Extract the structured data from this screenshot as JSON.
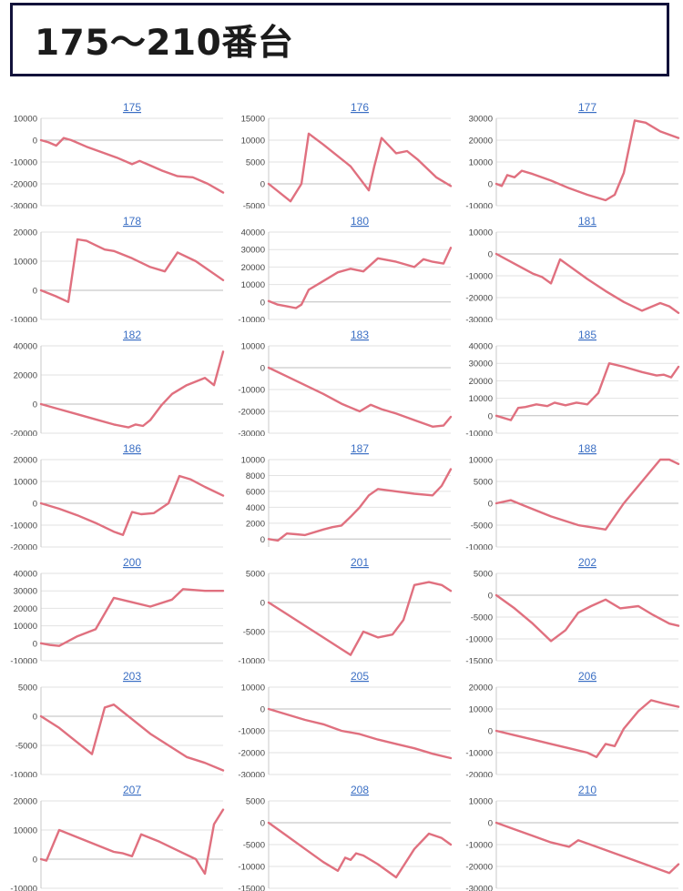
{
  "header": {
    "title": "175〜210番台"
  },
  "chart_data": [
    {
      "type": "line",
      "title": "175",
      "ylim": [
        -30000,
        10000
      ],
      "yticks": [
        10000,
        0,
        -10000,
        -20000,
        -30000
      ],
      "x": [
        0,
        5,
        10,
        15,
        20,
        30,
        40,
        50,
        60,
        65,
        70,
        75,
        80,
        90,
        100,
        110,
        120
      ],
      "values": [
        0,
        -1000,
        -2500,
        1000,
        0,
        -3000,
        -5500,
        -8000,
        -11000,
        -9500,
        -11000,
        -12500,
        -14000,
        -16500,
        -17000,
        -20000,
        -24000
      ]
    },
    {
      "type": "line",
      "title": "176",
      "ylim": [
        -5000,
        15000
      ],
      "yticks": [
        15000,
        10000,
        5000,
        0,
        -5000
      ],
      "x": [
        0,
        12,
        18,
        22,
        30,
        45,
        55,
        58,
        62,
        70,
        76,
        82,
        92,
        100
      ],
      "values": [
        0,
        -4000,
        0,
        11500,
        9000,
        4000,
        -1500,
        4000,
        10500,
        7000,
        7500,
        5500,
        1500,
        -500
      ]
    },
    {
      "type": "line",
      "title": "177",
      "ylim": [
        -10000,
        30000
      ],
      "yticks": [
        30000,
        20000,
        10000,
        0,
        -10000
      ],
      "x": [
        0,
        3,
        6,
        10,
        14,
        20,
        30,
        40,
        50,
        60,
        65,
        70,
        76,
        82,
        90,
        100
      ],
      "values": [
        0,
        -1000,
        4000,
        3000,
        6000,
        4500,
        1500,
        -2000,
        -5000,
        -7500,
        -5000,
        5000,
        29000,
        28000,
        24000,
        21000
      ]
    },
    {
      "type": "line",
      "title": "178",
      "ylim": [
        -10000,
        20000
      ],
      "yticks": [
        20000,
        10000,
        0,
        -10000
      ],
      "x": [
        0,
        8,
        15,
        20,
        25,
        30,
        35,
        40,
        50,
        60,
        68,
        75,
        85,
        100
      ],
      "values": [
        0,
        -2000,
        -4000,
        17500,
        17000,
        15500,
        14000,
        13500,
        11000,
        8000,
        6500,
        13000,
        10000,
        3500
      ]
    },
    {
      "type": "line",
      "title": "180",
      "ylim": [
        -10000,
        40000
      ],
      "yticks": [
        40000,
        30000,
        20000,
        10000,
        0,
        -10000
      ],
      "x": [
        0,
        5,
        10,
        15,
        18,
        22,
        30,
        38,
        45,
        52,
        60,
        70,
        80,
        85,
        90,
        96,
        100
      ],
      "values": [
        500,
        -1500,
        -2500,
        -3500,
        -1500,
        7000,
        12000,
        17000,
        19000,
        17500,
        25000,
        23000,
        20000,
        24500,
        23000,
        22000,
        31000
      ]
    },
    {
      "type": "line",
      "title": "181",
      "ylim": [
        -30000,
        10000
      ],
      "yticks": [
        10000,
        0,
        -10000,
        -20000,
        -30000
      ],
      "x": [
        0,
        10,
        20,
        25,
        30,
        35,
        40,
        50,
        60,
        70,
        80,
        90,
        95,
        100
      ],
      "values": [
        0,
        -4500,
        -9000,
        -10500,
        -13500,
        -2500,
        -5500,
        -11500,
        -17000,
        -22000,
        -26000,
        -22500,
        -24000,
        -27000
      ]
    },
    {
      "type": "line",
      "title": "182",
      "ylim": [
        -20000,
        40000
      ],
      "yticks": [
        40000,
        20000,
        0,
        -20000
      ],
      "x": [
        0,
        10,
        20,
        30,
        40,
        48,
        52,
        56,
        60,
        66,
        72,
        80,
        90,
        95,
        100
      ],
      "values": [
        0,
        -3500,
        -7000,
        -10500,
        -14000,
        -16000,
        -14000,
        -15000,
        -11000,
        -1000,
        7000,
        13000,
        18000,
        13000,
        36000
      ]
    },
    {
      "type": "line",
      "title": "183",
      "ylim": [
        -30000,
        10000
      ],
      "yticks": [
        10000,
        0,
        -10000,
        -20000,
        -30000
      ],
      "x": [
        0,
        10,
        20,
        30,
        40,
        50,
        56,
        62,
        70,
        80,
        90,
        96,
        100
      ],
      "values": [
        0,
        -4000,
        -8000,
        -12000,
        -16500,
        -20000,
        -17000,
        -19000,
        -21000,
        -24000,
        -27000,
        -26500,
        -22500
      ]
    },
    {
      "type": "line",
      "title": "185",
      "ylim": [
        -10000,
        40000
      ],
      "yticks": [
        40000,
        30000,
        20000,
        10000,
        0,
        -10000
      ],
      "x": [
        0,
        8,
        12,
        16,
        22,
        28,
        32,
        38,
        44,
        50,
        56,
        62,
        70,
        80,
        88,
        92,
        96,
        100
      ],
      "values": [
        0,
        -2500,
        4500,
        5000,
        6500,
        5500,
        7500,
        6000,
        7500,
        6500,
        13000,
        30000,
        28000,
        25000,
        23000,
        23500,
        22000,
        28000
      ]
    },
    {
      "type": "line",
      "title": "186",
      "ylim": [
        -20000,
        20000
      ],
      "yticks": [
        20000,
        10000,
        0,
        -10000,
        -20000
      ],
      "x": [
        0,
        10,
        20,
        30,
        40,
        45,
        50,
        55,
        62,
        70,
        76,
        82,
        90,
        100
      ],
      "values": [
        0,
        -2500,
        -5500,
        -9000,
        -13000,
        -14500,
        -4000,
        -5000,
        -4500,
        0,
        12500,
        11000,
        7500,
        3500
      ]
    },
    {
      "type": "line",
      "title": "187",
      "ylim": [
        -1000,
        10000
      ],
      "yticks": [
        10000,
        8000,
        6000,
        4000,
        2000,
        0
      ],
      "x": [
        0,
        5,
        10,
        15,
        20,
        30,
        35,
        40,
        45,
        50,
        55,
        60,
        70,
        80,
        90,
        95,
        100
      ],
      "values": [
        0,
        -200,
        700,
        600,
        500,
        1200,
        1500,
        1700,
        2800,
        4000,
        5500,
        6300,
        6000,
        5700,
        5500,
        6700,
        8800
      ]
    },
    {
      "type": "line",
      "title": "188",
      "ylim": [
        -10000,
        10000
      ],
      "yticks": [
        10000,
        5000,
        0,
        -5000,
        -10000
      ],
      "x": [
        0,
        8,
        15,
        30,
        45,
        60,
        70,
        80,
        90,
        95,
        100
      ],
      "values": [
        0,
        700,
        -500,
        -3000,
        -5000,
        -6000,
        0,
        5000,
        10000,
        10000,
        9000
      ]
    },
    {
      "type": "line",
      "title": "200",
      "ylim": [
        -10000,
        40000
      ],
      "yticks": [
        40000,
        30000,
        20000,
        10000,
        0,
        -10000
      ],
      "x": [
        0,
        5,
        10,
        20,
        30,
        40,
        50,
        60,
        72,
        78,
        90,
        100
      ],
      "values": [
        0,
        -1000,
        -1500,
        4000,
        8000,
        26000,
        23500,
        21000,
        25000,
        31000,
        30000,
        30000
      ]
    },
    {
      "type": "line",
      "title": "201",
      "ylim": [
        -10000,
        5000
      ],
      "yticks": [
        5000,
        0,
        -5000,
        -10000
      ],
      "x": [
        0,
        10,
        20,
        30,
        40,
        45,
        52,
        60,
        68,
        74,
        80,
        88,
        95,
        100
      ],
      "values": [
        0,
        -2000,
        -4000,
        -6000,
        -8000,
        -9000,
        -5000,
        -6000,
        -5500,
        -3000,
        3000,
        3500,
        3000,
        2000
      ]
    },
    {
      "type": "line",
      "title": "202",
      "ylim": [
        -15000,
        5000
      ],
      "yticks": [
        5000,
        0,
        -5000,
        -10000,
        -15000
      ],
      "x": [
        0,
        10,
        20,
        30,
        38,
        45,
        52,
        60,
        68,
        78,
        86,
        95,
        100
      ],
      "values": [
        0,
        -3000,
        -6500,
        -10500,
        -8000,
        -4000,
        -2500,
        -1000,
        -3000,
        -2500,
        -4500,
        -6500,
        -7000
      ]
    },
    {
      "type": "line",
      "title": "203",
      "ylim": [
        -10000,
        5000
      ],
      "yticks": [
        5000,
        0,
        -5000,
        -10000
      ],
      "x": [
        0,
        10,
        20,
        28,
        35,
        40,
        50,
        60,
        70,
        80,
        90,
        100
      ],
      "values": [
        0,
        -2000,
        -4500,
        -6500,
        1500,
        2000,
        -500,
        -3000,
        -5000,
        -7000,
        -8000,
        -9300
      ]
    },
    {
      "type": "line",
      "title": "205",
      "ylim": [
        -30000,
        10000
      ],
      "yticks": [
        10000,
        0,
        -10000,
        -20000,
        -30000
      ],
      "x": [
        0,
        10,
        20,
        30,
        40,
        50,
        60,
        70,
        80,
        90,
        100
      ],
      "values": [
        0,
        -2500,
        -5000,
        -7000,
        -10000,
        -11500,
        -14000,
        -16000,
        -18000,
        -20500,
        -22500
      ]
    },
    {
      "type": "line",
      "title": "206",
      "ylim": [
        -20000,
        20000
      ],
      "yticks": [
        20000,
        10000,
        0,
        -10000,
        -20000
      ],
      "x": [
        0,
        10,
        20,
        30,
        40,
        50,
        55,
        60,
        65,
        70,
        78,
        85,
        92,
        100
      ],
      "values": [
        0,
        -2000,
        -4000,
        -6000,
        -8000,
        -10000,
        -12000,
        -6000,
        -7000,
        1000,
        9000,
        14000,
        12500,
        11000
      ]
    },
    {
      "type": "line",
      "title": "207",
      "ylim": [
        -10000,
        20000
      ],
      "yticks": [
        20000,
        10000,
        0,
        -10000
      ],
      "x": [
        0,
        3,
        10,
        20,
        30,
        40,
        45,
        50,
        55,
        65,
        75,
        85,
        90,
        95,
        100
      ],
      "values": [
        0,
        -500,
        10000,
        7500,
        5000,
        2500,
        2000,
        1000,
        8500,
        6000,
        3000,
        0,
        -5000,
        12000,
        17000
      ]
    },
    {
      "type": "line",
      "title": "208",
      "ylim": [
        -15000,
        5000
      ],
      "yticks": [
        5000,
        0,
        -5000,
        -10000,
        -15000
      ],
      "x": [
        0,
        10,
        20,
        30,
        38,
        42,
        45,
        48,
        52,
        60,
        70,
        80,
        88,
        95,
        100
      ],
      "values": [
        0,
        -3000,
        -6000,
        -9000,
        -11000,
        -8000,
        -8500,
        -7000,
        -7500,
        -9500,
        -12500,
        -6000,
        -2500,
        -3500,
        -5000
      ]
    },
    {
      "type": "line",
      "title": "210",
      "ylim": [
        -30000,
        10000
      ],
      "yticks": [
        10000,
        0,
        -10000,
        -20000,
        -30000
      ],
      "x": [
        0,
        10,
        20,
        30,
        40,
        45,
        55,
        65,
        75,
        85,
        95,
        100
      ],
      "values": [
        0,
        -3000,
        -6000,
        -9000,
        -11000,
        -8000,
        -11000,
        -14000,
        -17000,
        -20000,
        -23000,
        -19000
      ]
    }
  ],
  "colors": {
    "line": "#e0707f",
    "title_link": "#3b6fc4",
    "header_border": "#12123a"
  }
}
